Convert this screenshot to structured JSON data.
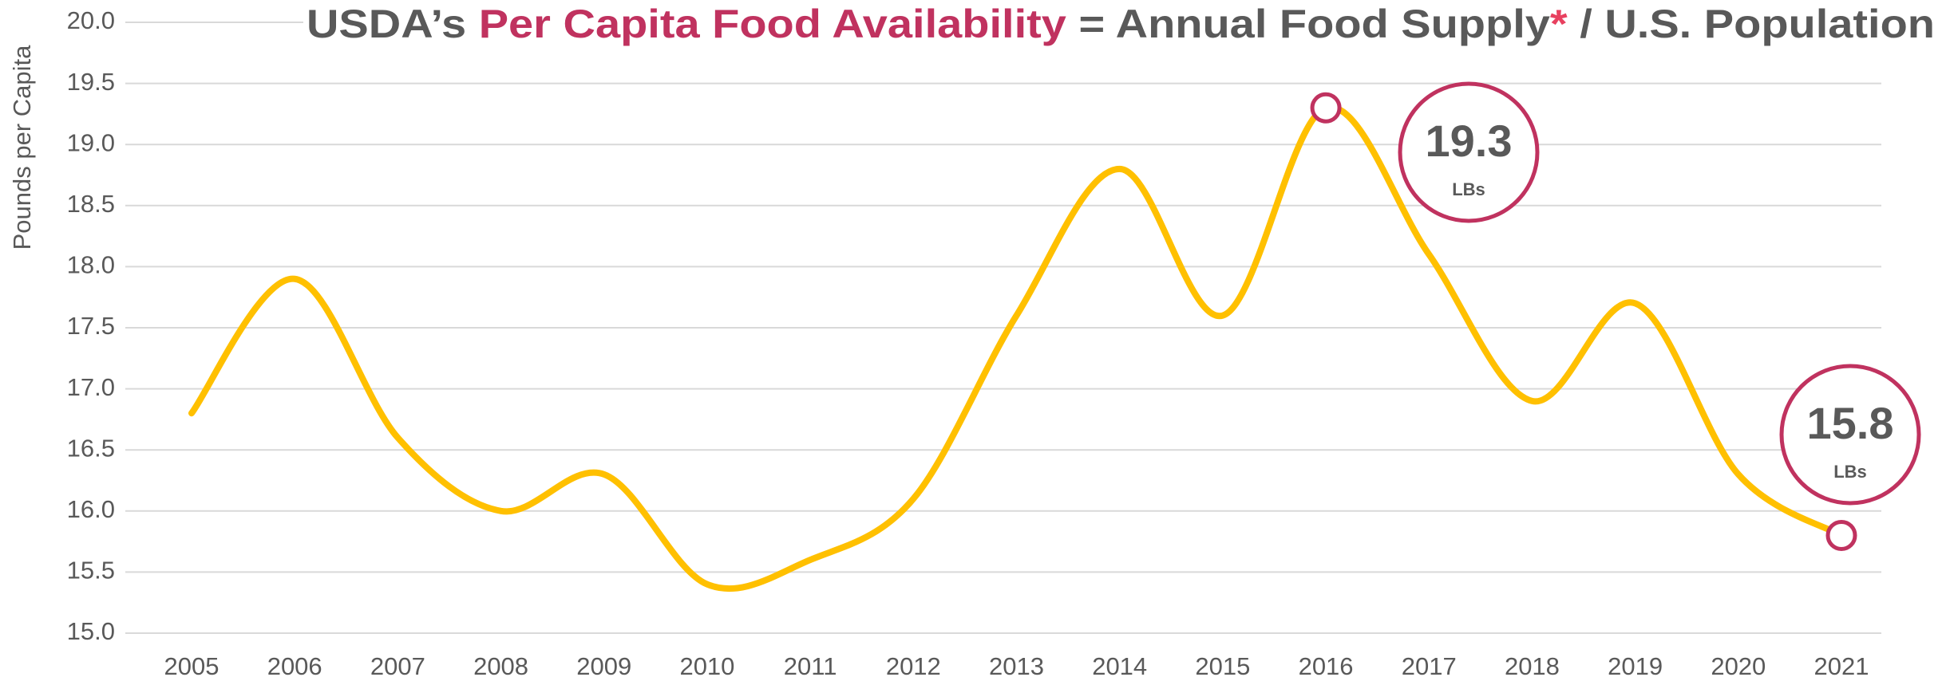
{
  "chart_data": {
    "type": "line",
    "title_parts": [
      "USDA’s ",
      "Per Capita Food Availability",
      " = Annual Food Supply",
      "*",
      " / U.S. Population"
    ],
    "y_label": "Pounds per Capita",
    "categories": [
      "2005",
      "2006",
      "2007",
      "2008",
      "2009",
      "2010",
      "2011",
      "2012",
      "2013",
      "2014",
      "2015",
      "2016",
      "2017",
      "2018",
      "2019",
      "2020",
      "2021"
    ],
    "series": [
      {
        "name": "Per Capita Food Availability",
        "color": "#ffc000",
        "values": [
          16.8,
          17.9,
          16.6,
          16.0,
          16.3,
          15.4,
          15.6,
          16.1,
          17.6,
          18.8,
          17.6,
          19.3,
          18.1,
          16.9,
          17.7,
          16.3,
          15.8
        ]
      }
    ],
    "ylim": [
      15.0,
      20.0
    ],
    "yticks": [
      {
        "value": 15,
        "label": "15.0"
      },
      15.5,
      {
        "value": 16,
        "label": "16.0"
      },
      16.5,
      {
        "value": 17,
        "label": "17.0"
      },
      17.5,
      {
        "value": 18,
        "label": "18.0"
      },
      18.5,
      {
        "value": 19,
        "label": "19.0"
      },
      19.5,
      {
        "value": 20,
        "label": "20.0"
      }
    ],
    "grid": true,
    "annotations": [
      {
        "label": "19.3",
        "unit": "LBs"
      },
      {
        "label": "15.8",
        "unit": "LBs"
      }
    ]
  }
}
